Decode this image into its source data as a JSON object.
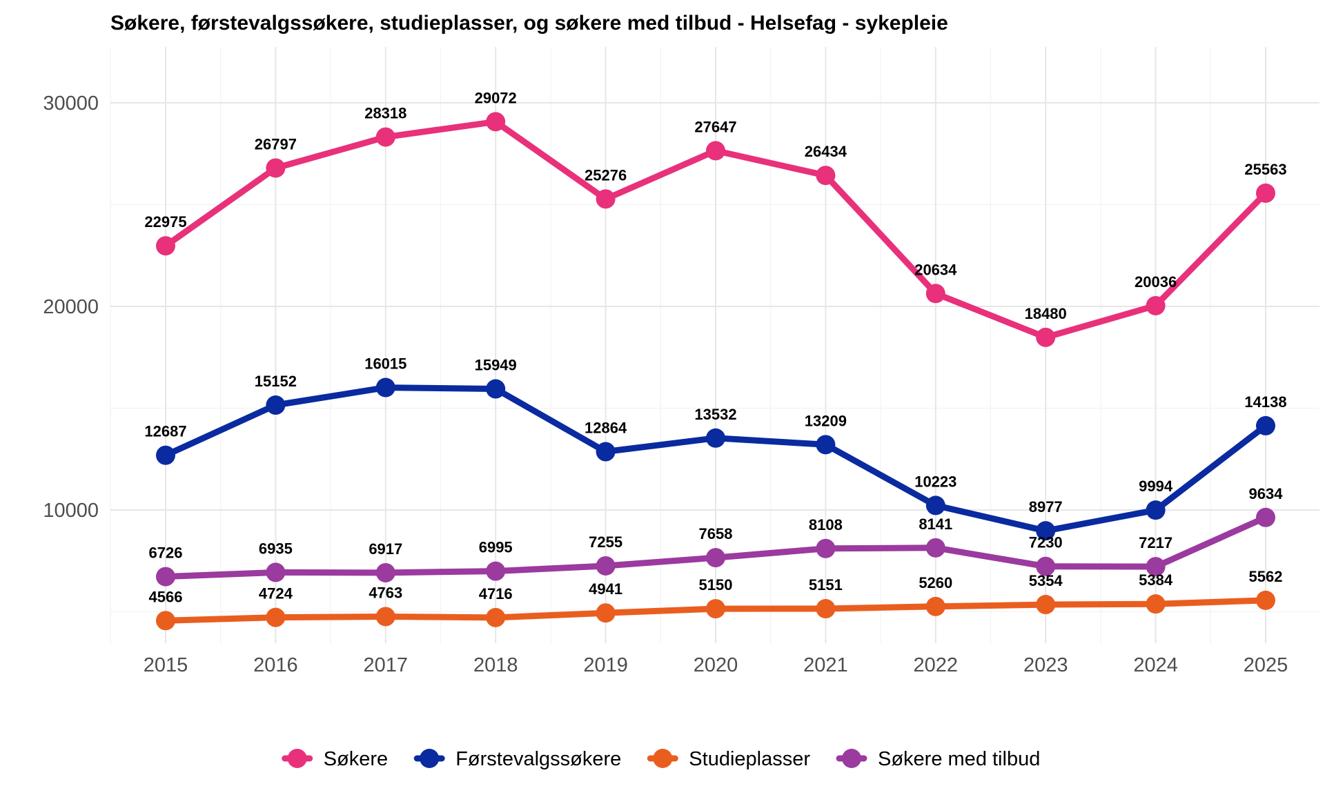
{
  "chart_data": {
    "type": "line",
    "title": "Søkere, førstevalgssøkere, studieplasser, og søkere med tilbud - Helsefag - sykepleie",
    "xlabel": "",
    "ylabel": "",
    "x": [
      "2015",
      "2016",
      "2017",
      "2018",
      "2019",
      "2020",
      "2021",
      "2022",
      "2023",
      "2024",
      "2025"
    ],
    "ylim": [
      3000,
      32500
    ],
    "yticks": [
      10000,
      20000,
      30000
    ],
    "ytick_labels": [
      "10000",
      "20000",
      "30000"
    ],
    "grid": true,
    "legend_position": "bottom",
    "series": [
      {
        "name": "Søkere",
        "color": "#E8317A",
        "values": [
          22975,
          26797,
          28318,
          29072,
          25276,
          27647,
          26434,
          20634,
          18480,
          20036,
          25563
        ],
        "labels": [
          "22975",
          "26797",
          "28318",
          "29072",
          "25276",
          "27647",
          "26434",
          "20634",
          "18480",
          "20036",
          "25563"
        ]
      },
      {
        "name": "Førstevalgssøkere",
        "color": "#0A2AA0",
        "values": [
          12687,
          15152,
          16015,
          15949,
          12864,
          13532,
          13209,
          10223,
          8977,
          9994,
          14138
        ],
        "labels": [
          "12687",
          "15152",
          "16015",
          "15949",
          "12864",
          "13532",
          "13209",
          "10223",
          "8977",
          "9994",
          "14138"
        ]
      },
      {
        "name": "Studieplasser",
        "color": "#E95E1E",
        "values": [
          4566,
          4724,
          4763,
          4716,
          4941,
          5150,
          5151,
          5260,
          5354,
          5384,
          5562
        ],
        "labels": [
          "4566",
          "4724",
          "4763",
          "4716",
          "4941",
          "5150",
          "5151",
          "5260",
          "5354",
          "5384",
          "5562"
        ]
      },
      {
        "name": "Søkere med tilbud",
        "color": "#9B3A9F",
        "values": [
          6726,
          6935,
          6917,
          6995,
          7255,
          7658,
          8108,
          8141,
          7230,
          7217,
          9634
        ],
        "labels": [
          "6726",
          "6935",
          "6917",
          "6995",
          "7255",
          "7658",
          "8108",
          "8141",
          "7230",
          "7217",
          "9634"
        ]
      }
    ]
  }
}
